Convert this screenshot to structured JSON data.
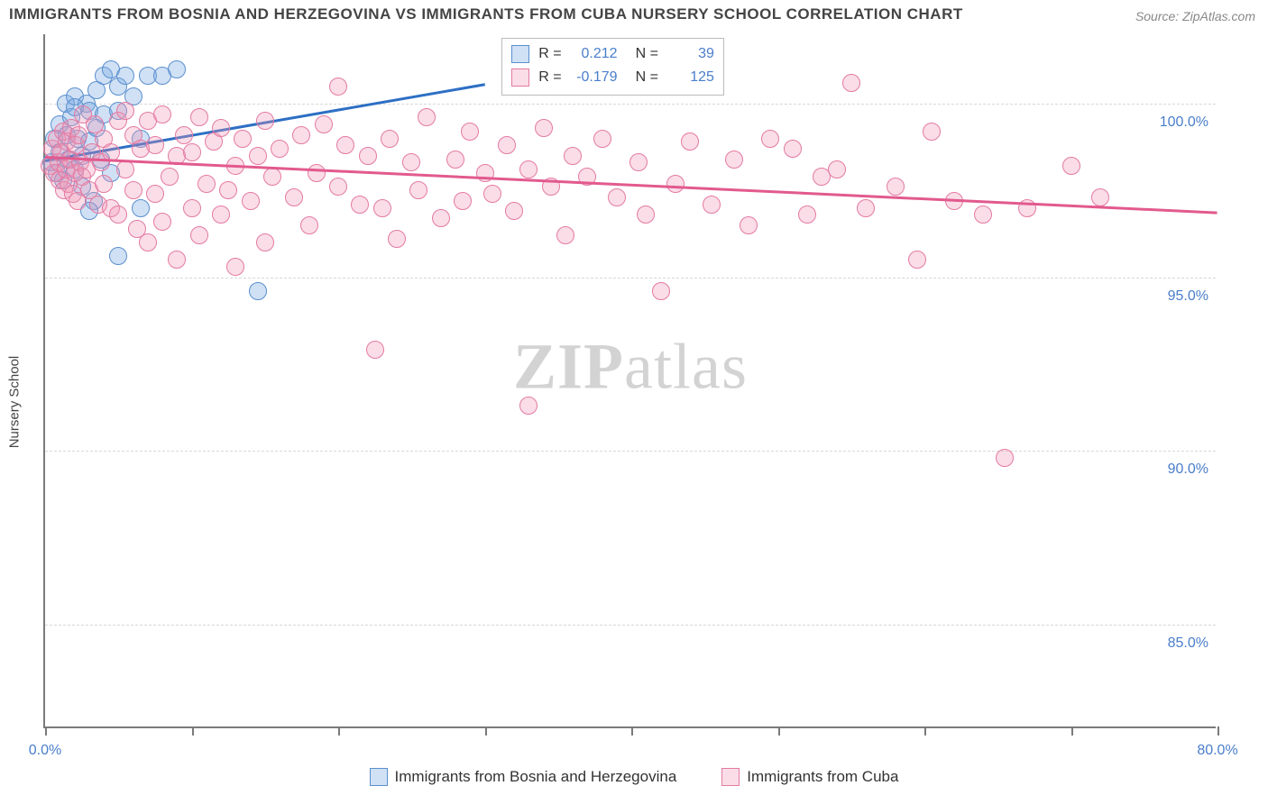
{
  "title": "IMMIGRANTS FROM BOSNIA AND HERZEGOVINA VS IMMIGRANTS FROM CUBA NURSERY SCHOOL CORRELATION CHART",
  "source": "Source: ZipAtlas.com",
  "watermark_bold": "ZIP",
  "watermark_rest": "atlas",
  "ylabel": "Nursery School",
  "chart": {
    "type": "scatter",
    "xlim": [
      0,
      80
    ],
    "ylim": [
      82,
      102
    ],
    "xtick_positions": [
      0,
      10,
      20,
      30,
      40,
      50,
      60,
      70,
      80
    ],
    "xtick_labels": {
      "0": "0.0%",
      "80": "80.0%"
    },
    "ytick_positions": [
      85,
      90,
      95,
      100
    ],
    "ytick_labels": [
      "85.0%",
      "90.0%",
      "95.0%",
      "100.0%"
    ],
    "grid_color": "#d8d8d8",
    "axis_color": "#7a7a7a",
    "tick_label_color": "#4a7ecb",
    "background_color": "#ffffff",
    "marker_radius": 10,
    "marker_border_width": 1.5,
    "series": [
      {
        "key": "bosnia",
        "label": "Immigrants from Bosnia and Herzegovina",
        "color_fill": "rgba(120,170,225,0.35)",
        "color_stroke": "#5a8fce",
        "trend_color": "#2d6fc4",
        "R": "0.212",
        "N": "39",
        "trend": {
          "x1": 0,
          "y1": 98.4,
          "x2": 30,
          "y2": 100.6
        },
        "points": [
          [
            0.4,
            98.3
          ],
          [
            0.6,
            99.0
          ],
          [
            0.8,
            98.0
          ],
          [
            1.0,
            98.6
          ],
          [
            1.0,
            99.4
          ],
          [
            1.2,
            97.8
          ],
          [
            1.4,
            100.0
          ],
          [
            1.5,
            99.1
          ],
          [
            1.6,
            98.4
          ],
          [
            1.8,
            99.6
          ],
          [
            2.0,
            98.1
          ],
          [
            2.0,
            100.2
          ],
          [
            2.2,
            99.0
          ],
          [
            2.5,
            98.5
          ],
          [
            2.5,
            97.6
          ],
          [
            2.8,
            100.0
          ],
          [
            3.0,
            98.9
          ],
          [
            3.0,
            99.8
          ],
          [
            3.3,
            97.2
          ],
          [
            3.5,
            99.3
          ],
          [
            3.5,
            100.4
          ],
          [
            3.8,
            98.4
          ],
          [
            4.0,
            99.7
          ],
          [
            4.0,
            100.8
          ],
          [
            4.5,
            98.0
          ],
          [
            4.5,
            101.0
          ],
          [
            5.0,
            99.8
          ],
          [
            5.0,
            100.5
          ],
          [
            5.5,
            100.8
          ],
          [
            6.0,
            100.2
          ],
          [
            6.5,
            99.0
          ],
          [
            7.0,
            100.8
          ],
          [
            8.0,
            100.8
          ],
          [
            9.0,
            101.0
          ],
          [
            5.0,
            95.6
          ],
          [
            14.5,
            94.6
          ],
          [
            6.5,
            97.0
          ],
          [
            3.0,
            96.9
          ],
          [
            2.0,
            99.9
          ]
        ]
      },
      {
        "key": "cuba",
        "label": "Immigrants from Cuba",
        "color_fill": "rgba(240,150,180,0.32)",
        "color_stroke": "#e47aa3",
        "trend_color": "#e25a8e",
        "R": "-0.179",
        "N": "125",
        "trend": {
          "x1": 0,
          "y1": 98.5,
          "x2": 80,
          "y2": 96.9
        },
        "points": [
          [
            0.3,
            98.2
          ],
          [
            0.5,
            98.7
          ],
          [
            0.6,
            98.0
          ],
          [
            0.8,
            99.0
          ],
          [
            0.9,
            98.3
          ],
          [
            1.0,
            97.8
          ],
          [
            1.1,
            98.6
          ],
          [
            1.2,
            99.2
          ],
          [
            1.3,
            97.5
          ],
          [
            1.4,
            98.1
          ],
          [
            1.5,
            98.9
          ],
          [
            1.6,
            97.7
          ],
          [
            1.7,
            98.4
          ],
          [
            1.8,
            99.3
          ],
          [
            1.9,
            97.4
          ],
          [
            2.0,
            98.0
          ],
          [
            2.1,
            98.8
          ],
          [
            2.2,
            97.2
          ],
          [
            2.3,
            99.1
          ],
          [
            2.4,
            98.3
          ],
          [
            2.5,
            97.9
          ],
          [
            2.6,
            99.7
          ],
          [
            2.8,
            98.1
          ],
          [
            3.0,
            97.5
          ],
          [
            3.2,
            98.6
          ],
          [
            3.4,
            99.4
          ],
          [
            3.6,
            97.1
          ],
          [
            3.8,
            98.3
          ],
          [
            4.0,
            99.0
          ],
          [
            4.0,
            97.7
          ],
          [
            4.5,
            98.6
          ],
          [
            4.5,
            97.0
          ],
          [
            5.0,
            99.5
          ],
          [
            5.0,
            96.8
          ],
          [
            5.5,
            98.1
          ],
          [
            5.5,
            99.8
          ],
          [
            6.0,
            97.5
          ],
          [
            6.0,
            99.1
          ],
          [
            6.3,
            96.4
          ],
          [
            6.5,
            98.7
          ],
          [
            7.0,
            99.5
          ],
          [
            7.0,
            96.0
          ],
          [
            7.5,
            97.4
          ],
          [
            7.5,
            98.8
          ],
          [
            8.0,
            99.7
          ],
          [
            8.0,
            96.6
          ],
          [
            8.5,
            97.9
          ],
          [
            9.0,
            98.5
          ],
          [
            9.0,
            95.5
          ],
          [
            9.5,
            99.1
          ],
          [
            10.0,
            97.0
          ],
          [
            10.0,
            98.6
          ],
          [
            10.5,
            99.6
          ],
          [
            10.5,
            96.2
          ],
          [
            11.0,
            97.7
          ],
          [
            11.5,
            98.9
          ],
          [
            12.0,
            96.8
          ],
          [
            12.0,
            99.3
          ],
          [
            12.5,
            97.5
          ],
          [
            13.0,
            98.2
          ],
          [
            13.0,
            95.3
          ],
          [
            13.5,
            99.0
          ],
          [
            14.0,
            97.2
          ],
          [
            14.5,
            98.5
          ],
          [
            15.0,
            99.5
          ],
          [
            15.0,
            96.0
          ],
          [
            15.5,
            97.9
          ],
          [
            16.0,
            98.7
          ],
          [
            17.0,
            97.3
          ],
          [
            17.5,
            99.1
          ],
          [
            18.0,
            96.5
          ],
          [
            18.5,
            98.0
          ],
          [
            19.0,
            99.4
          ],
          [
            20.0,
            97.6
          ],
          [
            20.5,
            98.8
          ],
          [
            21.5,
            97.1
          ],
          [
            22.0,
            98.5
          ],
          [
            20.0,
            100.5
          ],
          [
            23.0,
            97.0
          ],
          [
            23.5,
            99.0
          ],
          [
            24.0,
            96.1
          ],
          [
            25.0,
            98.3
          ],
          [
            25.5,
            97.5
          ],
          [
            26.0,
            99.6
          ],
          [
            27.0,
            96.7
          ],
          [
            28.0,
            98.4
          ],
          [
            28.5,
            97.2
          ],
          [
            29.0,
            99.2
          ],
          [
            30.0,
            98.0
          ],
          [
            30.5,
            97.4
          ],
          [
            31.5,
            98.8
          ],
          [
            32.0,
            96.9
          ],
          [
            33.0,
            98.1
          ],
          [
            34.0,
            99.3
          ],
          [
            34.5,
            97.6
          ],
          [
            35.5,
            96.2
          ],
          [
            36.0,
            98.5
          ],
          [
            37.0,
            97.9
          ],
          [
            38.0,
            99.0
          ],
          [
            39.0,
            97.3
          ],
          [
            40.5,
            98.3
          ],
          [
            41.0,
            96.8
          ],
          [
            42.0,
            94.6
          ],
          [
            22.5,
            92.9
          ],
          [
            33.0,
            91.3
          ],
          [
            43.0,
            97.7
          ],
          [
            44.0,
            98.9
          ],
          [
            45.5,
            97.1
          ],
          [
            47.0,
            98.4
          ],
          [
            48.0,
            96.5
          ],
          [
            49.5,
            99.0
          ],
          [
            51.0,
            98.7
          ],
          [
            52.0,
            96.8
          ],
          [
            53.0,
            97.9
          ],
          [
            55.0,
            100.6
          ],
          [
            54.0,
            98.1
          ],
          [
            56.0,
            97.0
          ],
          [
            58.0,
            97.6
          ],
          [
            59.5,
            95.5
          ],
          [
            60.5,
            99.2
          ],
          [
            62.0,
            97.2
          ],
          [
            64.0,
            96.8
          ],
          [
            65.5,
            89.8
          ],
          [
            67.0,
            97.0
          ],
          [
            70.0,
            98.2
          ],
          [
            72.0,
            97.3
          ]
        ]
      }
    ]
  },
  "stats_box": {
    "R_label": "R  =",
    "N_label": "N  ="
  }
}
